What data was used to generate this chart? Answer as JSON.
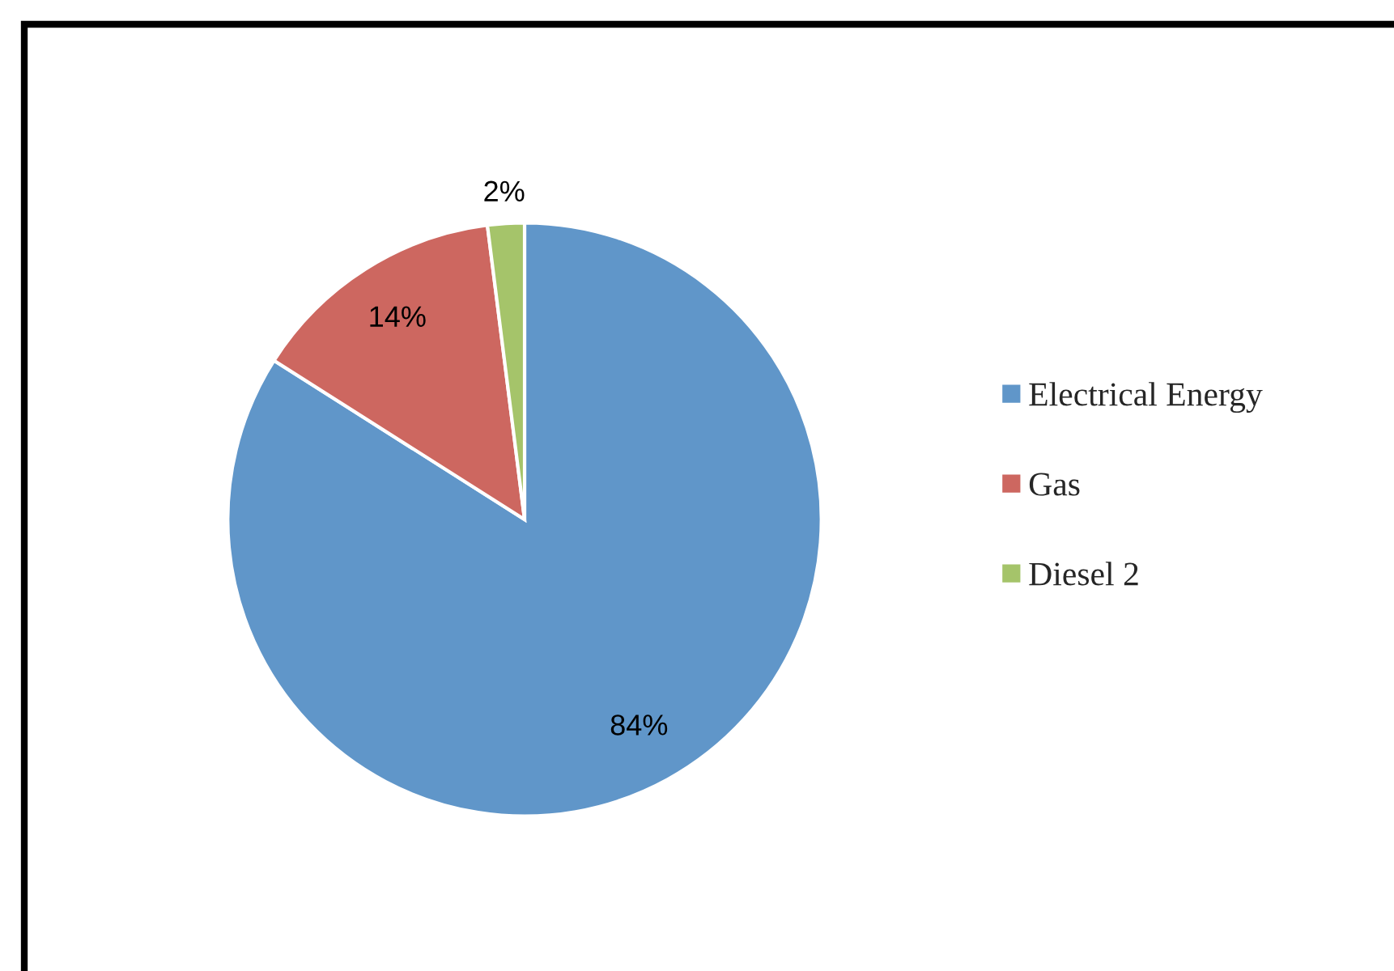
{
  "chart_data": {
    "type": "pie",
    "categories": [
      "Electrical Energy",
      "Gas",
      "Diesel 2"
    ],
    "values": [
      84,
      14,
      2
    ],
    "value_labels": [
      "84%",
      "14%",
      "2%"
    ],
    "colors": [
      "#6096c9",
      "#cd6760",
      "#a5c46a"
    ],
    "legend": "right"
  }
}
